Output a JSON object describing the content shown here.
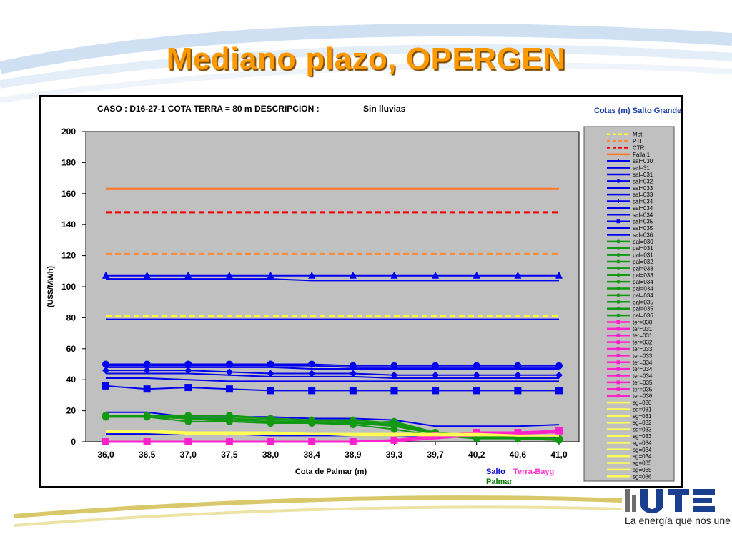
{
  "slide": {
    "title": "Mediano plazo, OPERGEN",
    "tagline": "La energía que nos une",
    "logo_name": "ute-logo"
  },
  "chart_data": {
    "type": "line",
    "caso_text": "CASO : D16-27-1 COTA TERRA = 80 m  DESCRIPCION :",
    "descripcion_value": "Sin lluvias",
    "xlabel": "Cota de Palmar (m)",
    "ylabel": "(U$S/MWh)",
    "ylim": [
      0,
      200
    ],
    "yticks": [
      0,
      20,
      40,
      60,
      80,
      100,
      120,
      140,
      160,
      180,
      200
    ],
    "x": [
      "36,0",
      "36,5",
      "37,0",
      "37,5",
      "38,0",
      "38,4",
      "38,9",
      "39,3",
      "39,7",
      "40,2",
      "40,6",
      "41,0"
    ],
    "grid": false,
    "plot_background": "#c0c0c0",
    "legend_title": "Cotas (m) Salto Grande",
    "legend_position": "right",
    "group_labels": [
      {
        "text": "Salto",
        "color": "#0000cc"
      },
      {
        "text": "Terra-Bayg",
        "color": "#ff33cc"
      },
      {
        "text": "Palmar",
        "color": "#007700"
      }
    ],
    "series": [
      {
        "name": "Mot",
        "color": "#ffff33",
        "dash": true,
        "marker": "none",
        "width": 3,
        "values": [
          81,
          81,
          81,
          81,
          81,
          81,
          81,
          81,
          81,
          81,
          81,
          81
        ]
      },
      {
        "name": "PTI",
        "color": "#ff8833",
        "dash": true,
        "marker": "none",
        "width": 3,
        "values": [
          121,
          121,
          121,
          121,
          121,
          121,
          121,
          121,
          121,
          121,
          121,
          121
        ]
      },
      {
        "name": "CTR",
        "color": "#ee0000",
        "dash": true,
        "marker": "none",
        "width": 3,
        "values": [
          148,
          148,
          148,
          148,
          148,
          148,
          148,
          148,
          148,
          148,
          148,
          148
        ]
      },
      {
        "name": "Falla 1",
        "color": "#ff7722",
        "dash": false,
        "marker": "none",
        "width": 3,
        "values": [
          163,
          163,
          163,
          163,
          163,
          163,
          163,
          163,
          163,
          163,
          163,
          163
        ]
      },
      {
        "name": "sal=030",
        "color": "#0000ee",
        "marker": "triangle",
        "width": 2,
        "values": [
          107,
          107,
          107,
          107,
          107,
          107,
          107,
          107,
          107,
          107,
          107,
          107
        ]
      },
      {
        "name": "sal=31",
        "color": "#0000ee",
        "marker": "none",
        "width": 2,
        "values": [
          105,
          105,
          105,
          105,
          105,
          104,
          104,
          104,
          104,
          104,
          104,
          104
        ]
      },
      {
        "name": "sal=031",
        "color": "#0000ee",
        "marker": "none",
        "width": 2,
        "values": [
          79,
          79,
          79,
          79,
          79,
          79,
          79,
          79,
          79,
          79,
          79,
          79
        ]
      },
      {
        "name": "sal=032",
        "color": "#0000ee",
        "marker": "circle",
        "width": 2,
        "values": [
          50,
          50,
          50,
          50,
          50,
          50,
          49,
          49,
          49,
          49,
          49,
          49
        ]
      },
      {
        "name": "sal=033",
        "color": "#0000ee",
        "marker": "none",
        "width": 2,
        "values": [
          49,
          49,
          49,
          49,
          49,
          49,
          48,
          48,
          48,
          48,
          48,
          48
        ]
      },
      {
        "name": "sal=033",
        "color": "#0000ee",
        "marker": "none",
        "width": 2,
        "values": [
          48,
          48,
          48,
          48,
          48,
          47,
          47,
          47,
          47,
          47,
          47,
          47
        ]
      },
      {
        "name": "sal=034",
        "color": "#0000ee",
        "marker": "diamond",
        "width": 2,
        "values": [
          46,
          46,
          46,
          45,
          44,
          44,
          44,
          43,
          43,
          43,
          43,
          43
        ]
      },
      {
        "name": "sal=034",
        "color": "#0000ee",
        "marker": "none",
        "width": 2,
        "values": [
          44,
          44,
          44,
          43,
          42,
          42,
          42,
          41,
          41,
          41,
          41,
          41
        ]
      },
      {
        "name": "sal=034",
        "color": "#0000ee",
        "marker": "none",
        "width": 2,
        "values": [
          41,
          41,
          40,
          39,
          39,
          39,
          39,
          39,
          39,
          39,
          39,
          39
        ]
      },
      {
        "name": "sal=035",
        "color": "#0000ee",
        "marker": "square",
        "width": 2,
        "values": [
          36,
          34,
          35,
          34,
          33,
          33,
          33,
          33,
          33,
          33,
          33,
          33
        ]
      },
      {
        "name": "sal=035",
        "color": "#0000ee",
        "marker": "none",
        "width": 2,
        "values": [
          19,
          19,
          16,
          16,
          16,
          15,
          15,
          14,
          10,
          10,
          10,
          11
        ]
      },
      {
        "name": "sal=036",
        "color": "#0000ee",
        "marker": "none",
        "width": 2,
        "values": [
          5,
          5,
          5,
          5,
          4,
          4,
          4,
          4,
          3,
          3,
          3,
          3
        ]
      },
      {
        "name": "pal=030",
        "color": "#119911",
        "marker": "circle",
        "width": 2,
        "values": [
          17,
          17,
          16,
          16,
          15,
          13,
          12,
          13,
          6,
          3,
          2,
          2
        ]
      },
      {
        "name": "pal=031",
        "color": "#119911",
        "marker": "circle",
        "width": 2,
        "values": [
          16,
          16,
          15,
          15,
          14,
          14,
          14,
          12,
          6,
          4,
          3,
          2
        ]
      },
      {
        "name": "pal=031",
        "color": "#119911",
        "marker": "circle",
        "width": 2,
        "values": [
          16,
          16,
          15,
          14,
          13,
          13,
          12,
          11,
          6,
          3,
          2,
          2
        ]
      },
      {
        "name": "pal=032",
        "color": "#119911",
        "marker": "circle",
        "width": 2,
        "values": [
          17,
          16,
          13,
          13,
          12,
          12,
          12,
          10,
          5,
          3,
          2,
          1
        ]
      },
      {
        "name": "pal=033",
        "color": "#119911",
        "marker": "circle",
        "width": 2,
        "values": [
          17,
          17,
          17,
          17,
          15,
          14,
          13,
          11,
          5,
          3,
          2,
          1
        ]
      },
      {
        "name": "pal=036",
        "color": "#119911",
        "marker": "circle",
        "width": 2,
        "values": [
          16,
          16,
          15,
          13,
          12,
          12,
          11,
          8,
          4,
          2,
          2,
          1
        ]
      },
      {
        "name": "ter=030",
        "color": "#ff22cc",
        "marker": "square",
        "width": 3,
        "values": [
          0,
          0,
          0,
          0,
          0,
          0,
          0,
          1,
          4,
          6,
          6,
          7
        ]
      },
      {
        "name": "ter=031",
        "color": "#ff22cc",
        "marker": "none",
        "width": 2,
        "values": [
          0,
          0,
          0,
          0,
          0,
          0,
          0,
          1,
          3,
          5,
          5,
          6
        ]
      },
      {
        "name": "ter=033",
        "color": "#ff22cc",
        "marker": "none",
        "width": 2,
        "values": [
          0,
          0,
          0,
          0,
          0,
          0,
          0,
          0,
          2,
          4,
          5,
          6
        ]
      },
      {
        "name": "sg=030",
        "color": "#ffff55",
        "marker": "none",
        "width": 3,
        "values": [
          7,
          7,
          6,
          6,
          6,
          5,
          5,
          5,
          5,
          5,
          4,
          4
        ]
      },
      {
        "name": "sg=031",
        "color": "#ffff55",
        "marker": "none",
        "width": 2,
        "values": [
          6,
          6,
          5,
          5,
          5,
          5,
          4,
          4,
          4,
          4,
          4,
          4
        ]
      }
    ],
    "legend_entries": [
      {
        "name": "Mot",
        "color": "#ffff33",
        "style": "dash",
        "marker": "none"
      },
      {
        "name": "PTI",
        "color": "#ff8833",
        "style": "dash",
        "marker": "none"
      },
      {
        "name": "CTR",
        "color": "#ee0000",
        "style": "dash",
        "marker": "none"
      },
      {
        "name": "Falla 1",
        "color": "#ff7722",
        "style": "solid",
        "marker": "none"
      },
      {
        "name": "sal=030",
        "color": "#0000ee",
        "style": "solid",
        "marker": "triangle"
      },
      {
        "name": "sal=31",
        "color": "#0000ee",
        "style": "solid",
        "marker": "none"
      },
      {
        "name": "sal=031",
        "color": "#0000ee",
        "style": "solid",
        "marker": "none"
      },
      {
        "name": "sal=032",
        "color": "#0000ee",
        "style": "solid",
        "marker": "circle"
      },
      {
        "name": "sal=033",
        "color": "#0000ee",
        "style": "solid",
        "marker": "none"
      },
      {
        "name": "sal=033",
        "color": "#0000ee",
        "style": "solid",
        "marker": "none"
      },
      {
        "name": "sal=034",
        "color": "#0000ee",
        "style": "solid",
        "marker": "plus"
      },
      {
        "name": "sal=034",
        "color": "#0000ee",
        "style": "solid",
        "marker": "none"
      },
      {
        "name": "sal=034",
        "color": "#0000ee",
        "style": "solid",
        "marker": "none"
      },
      {
        "name": "sal=035",
        "color": "#0000ee",
        "style": "solid",
        "marker": "square"
      },
      {
        "name": "sal=035",
        "color": "#0000ee",
        "style": "solid",
        "marker": "none"
      },
      {
        "name": "sal=036",
        "color": "#0000ee",
        "style": "solid",
        "marker": "none"
      },
      {
        "name": "pal=030",
        "color": "#119911",
        "style": "solid",
        "marker": "circle"
      },
      {
        "name": "pal=031",
        "color": "#119911",
        "style": "solid",
        "marker": "circle"
      },
      {
        "name": "pal=031",
        "color": "#119911",
        "style": "solid",
        "marker": "circle"
      },
      {
        "name": "pal=032",
        "color": "#119911",
        "style": "solid",
        "marker": "circle"
      },
      {
        "name": "pal=033",
        "color": "#119911",
        "style": "solid",
        "marker": "circle"
      },
      {
        "name": "pal=033",
        "color": "#119911",
        "style": "solid",
        "marker": "circle"
      },
      {
        "name": "pal=034",
        "color": "#119911",
        "style": "solid",
        "marker": "circle"
      },
      {
        "name": "pal=034",
        "color": "#119911",
        "style": "solid",
        "marker": "circle"
      },
      {
        "name": "pal=034",
        "color": "#119911",
        "style": "solid",
        "marker": "circle"
      },
      {
        "name": "pal=035",
        "color": "#119911",
        "style": "solid",
        "marker": "circle"
      },
      {
        "name": "pal=035",
        "color": "#119911",
        "style": "solid",
        "marker": "circle"
      },
      {
        "name": "pal=036",
        "color": "#119911",
        "style": "solid",
        "marker": "circle"
      },
      {
        "name": "ter=030",
        "color": "#ff22cc",
        "style": "solid",
        "marker": "square"
      },
      {
        "name": "ter=031",
        "color": "#ff22cc",
        "style": "solid",
        "marker": "square"
      },
      {
        "name": "ter=031",
        "color": "#ff22cc",
        "style": "solid",
        "marker": "square"
      },
      {
        "name": "ter=032",
        "color": "#ff22cc",
        "style": "solid",
        "marker": "square"
      },
      {
        "name": "ter=033",
        "color": "#ff22cc",
        "style": "solid",
        "marker": "square"
      },
      {
        "name": "ter=033",
        "color": "#ff22cc",
        "style": "solid",
        "marker": "square"
      },
      {
        "name": "ter=034",
        "color": "#ff22cc",
        "style": "solid",
        "marker": "square"
      },
      {
        "name": "ter=034",
        "color": "#ff22cc",
        "style": "solid",
        "marker": "square"
      },
      {
        "name": "ter=034",
        "color": "#ff22cc",
        "style": "solid",
        "marker": "square"
      },
      {
        "name": "ter=035",
        "color": "#ff22cc",
        "style": "solid",
        "marker": "square"
      },
      {
        "name": "ter=035",
        "color": "#ff22cc",
        "style": "solid",
        "marker": "square"
      },
      {
        "name": "ter=036",
        "color": "#ff22cc",
        "style": "solid",
        "marker": "square"
      },
      {
        "name": "sg=030",
        "color": "#ffff55",
        "style": "solid",
        "marker": "none"
      },
      {
        "name": "sg=031",
        "color": "#ffff55",
        "style": "solid",
        "marker": "none"
      },
      {
        "name": "sg=031",
        "color": "#ffff55",
        "style": "solid",
        "marker": "none"
      },
      {
        "name": "sg=032",
        "color": "#ffff55",
        "style": "solid",
        "marker": "none"
      },
      {
        "name": "sg=033",
        "color": "#ffff55",
        "style": "solid",
        "marker": "none"
      },
      {
        "name": "sg=033",
        "color": "#ffff55",
        "style": "solid",
        "marker": "none"
      },
      {
        "name": "sg=034",
        "color": "#ffff55",
        "style": "solid",
        "marker": "none"
      },
      {
        "name": "sg=034",
        "color": "#ffff55",
        "style": "solid",
        "marker": "none"
      },
      {
        "name": "sg=034",
        "color": "#ffff55",
        "style": "solid",
        "marker": "none"
      },
      {
        "name": "sg=035",
        "color": "#ffff55",
        "style": "solid",
        "marker": "none"
      },
      {
        "name": "sg=035",
        "color": "#ffff55",
        "style": "solid",
        "marker": "none"
      },
      {
        "name": "sg=036",
        "color": "#ffff55",
        "style": "solid",
        "marker": "none"
      }
    ]
  }
}
